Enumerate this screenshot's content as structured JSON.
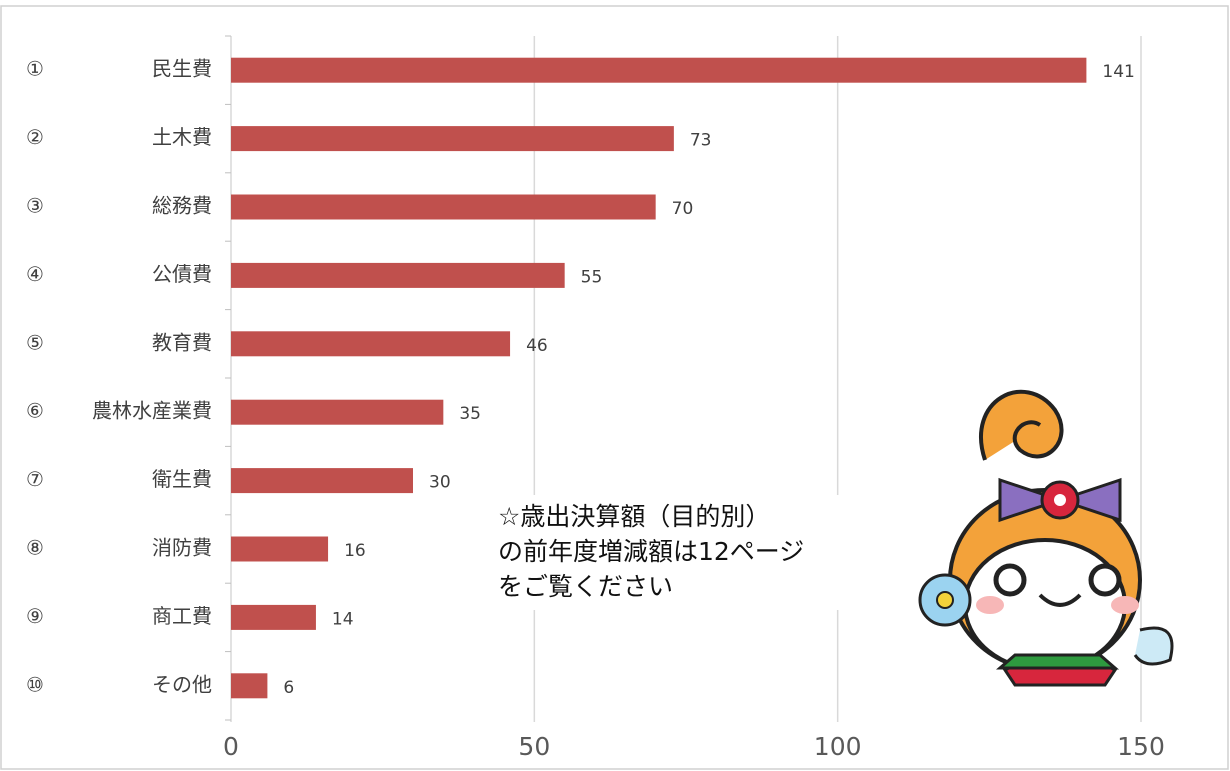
{
  "chart_data": {
    "type": "barh",
    "ranks": [
      "①",
      "②",
      "③",
      "④",
      "⑤",
      "⑥",
      "⑦",
      "⑧",
      "⑨",
      "⑩"
    ],
    "categories": [
      "民生費",
      "土木費",
      "総務費",
      "公債費",
      "教育費",
      "農林水産業費",
      "衛生費",
      "消防費",
      "商工費",
      "その他"
    ],
    "values": [
      141,
      73,
      70,
      55,
      46,
      35,
      30,
      16,
      14,
      6
    ],
    "color": "#c0504d",
    "xlim": [
      0,
      150
    ],
    "xticks": [
      0,
      50,
      100,
      150
    ],
    "grid": true,
    "annotation": [
      "☆歳出決算額（目的別）",
      "の前年度増減額は12ページ",
      "をご覧ください"
    ]
  }
}
